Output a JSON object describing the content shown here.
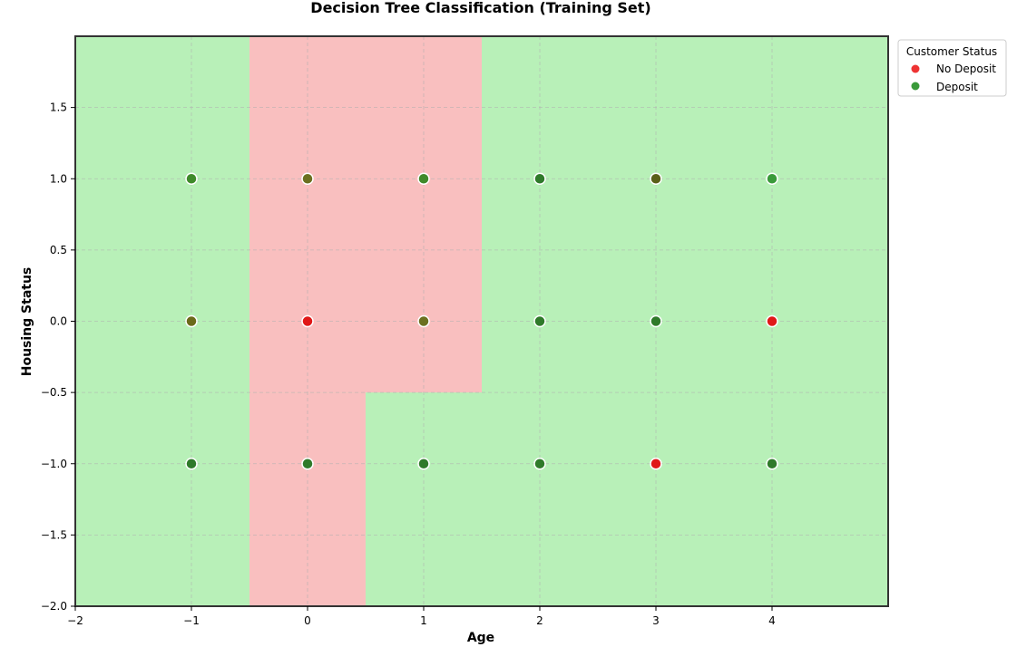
{
  "chart_data": {
    "type": "scatter",
    "title": "Decision Tree Classification (Training Set)",
    "xlabel": "Age",
    "ylabel": "Housing Status",
    "xlim": [
      -2,
      5
    ],
    "ylim": [
      -2.0,
      2.0
    ],
    "xticks": [
      "−2",
      "−1",
      "0",
      "1",
      "2",
      "3",
      "4"
    ],
    "xtick_values": [
      -2,
      -1,
      0,
      1,
      2,
      3,
      4
    ],
    "yticks": [
      "−2.0",
      "−1.5",
      "−1.0",
      "−0.5",
      "0.0",
      "0.5",
      "1.0",
      "1.5"
    ],
    "ytick_values": [
      -2.0,
      -1.5,
      -1.0,
      -0.5,
      0.0,
      0.5,
      1.0,
      1.5
    ],
    "grid": true,
    "legend": {
      "title": "Customer Status",
      "placement": "upper right, outside plot",
      "entries": [
        {
          "label": "No Deposit",
          "color": "#ee2222"
        },
        {
          "label": "Deposit",
          "color": "#3a9a3a"
        }
      ]
    },
    "regions": [
      {
        "class": "Deposit",
        "color": "#b8f0b8",
        "x": [
          -2,
          5
        ],
        "y": [
          -2.0,
          2.0
        ]
      },
      {
        "class": "No Deposit",
        "color": "#f9bfbf",
        "x": [
          -0.5,
          1.5
        ],
        "y": [
          -0.5,
          2.0
        ]
      },
      {
        "class": "No Deposit",
        "color": "#f9bfbf",
        "x": [
          -0.5,
          0.5
        ],
        "y": [
          -2.0,
          -0.5
        ]
      }
    ],
    "points": [
      {
        "x": -1,
        "y": 1,
        "color": "#3f8a2a"
      },
      {
        "x": 0,
        "y": 1,
        "color": "#6b7020"
      },
      {
        "x": 1,
        "y": 1,
        "color": "#3f8a2a"
      },
      {
        "x": 2,
        "y": 1,
        "color": "#2f7a2a"
      },
      {
        "x": 3,
        "y": 1,
        "color": "#5a6018"
      },
      {
        "x": 4,
        "y": 1,
        "color": "#3a9a3a"
      },
      {
        "x": -1,
        "y": 0,
        "color": "#6b6a1a"
      },
      {
        "x": 0,
        "y": 0,
        "color": "#e01818"
      },
      {
        "x": 1,
        "y": 0,
        "color": "#6b7020"
      },
      {
        "x": 2,
        "y": 0,
        "color": "#2f7a2a"
      },
      {
        "x": 3,
        "y": 0,
        "color": "#2f7a2a"
      },
      {
        "x": 4,
        "y": 0,
        "color": "#e01818"
      },
      {
        "x": -1,
        "y": -1,
        "color": "#2f7a2a"
      },
      {
        "x": 0,
        "y": -1,
        "color": "#2f7a2a"
      },
      {
        "x": 1,
        "y": -1,
        "color": "#2f7a2a"
      },
      {
        "x": 2,
        "y": -1,
        "color": "#2f7a2a"
      },
      {
        "x": 3,
        "y": -1,
        "color": "#e01818"
      },
      {
        "x": 4,
        "y": -1,
        "color": "#2f7a2a"
      }
    ]
  }
}
